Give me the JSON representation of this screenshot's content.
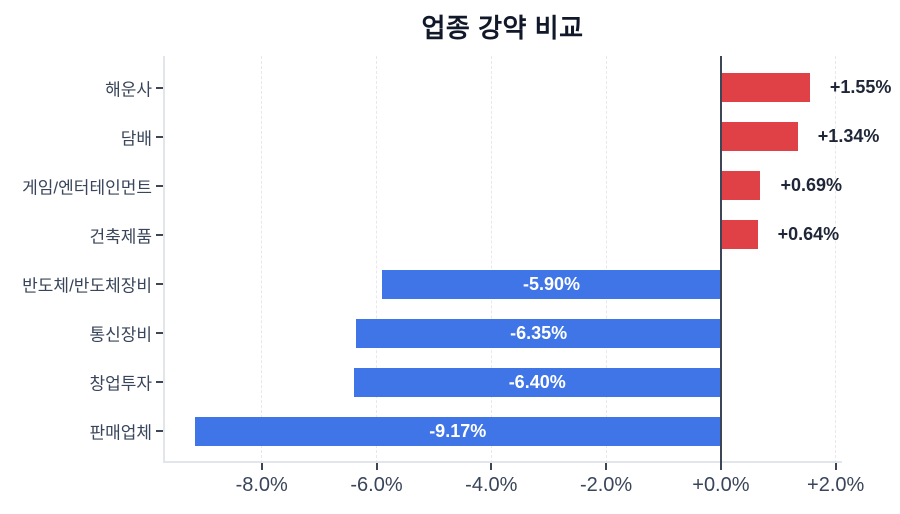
{
  "chart": {
    "title": "업종 강약 비교"
  },
  "chart_data": {
    "type": "bar",
    "orientation": "horizontal",
    "title": "업종 강약 비교",
    "xlabel": "",
    "ylabel": "",
    "categories": [
      "해운사",
      "담배",
      "게임/엔터테인먼트",
      "건축제품",
      "반도체/반도체장비",
      "통신장비",
      "창업투자",
      "판매업체"
    ],
    "values": [
      1.55,
      1.34,
      0.69,
      0.64,
      -5.9,
      -6.35,
      -6.4,
      -9.17
    ],
    "value_labels": [
      "+1.55%",
      "+1.34%",
      "+0.69%",
      "+0.64%",
      "-5.90%",
      "-6.35%",
      "-6.40%",
      "-9.17%"
    ],
    "xlim": [
      -9.72,
      2.11
    ],
    "xticks": [
      -8,
      -6,
      -4,
      -2,
      0,
      2
    ],
    "xtick_labels": [
      "-8.0%",
      "-6.0%",
      "-4.0%",
      "-2.0%",
      "+0.0%",
      "+2.0%"
    ],
    "grid": "vertical-dashed",
    "legend": "none",
    "colors": {
      "positive": "#df4146",
      "negative": "#4075e8",
      "zero_line": "#3d4657",
      "axis_line": "#3d4657",
      "spine": "#e2e5ea",
      "grid": "#e8e8e8",
      "title_text": "#10182a",
      "axis_text": "#39455a",
      "value_text_outside": "#1e2637",
      "value_text_inside": "#ffffff",
      "background": "#ffffff"
    }
  }
}
